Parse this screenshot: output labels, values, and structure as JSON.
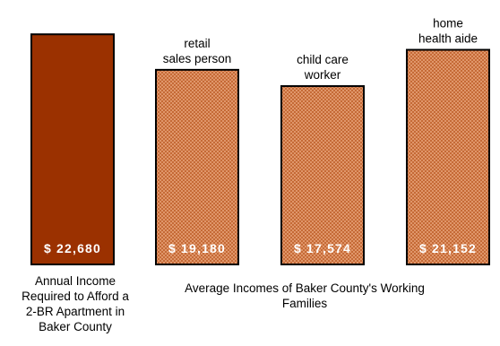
{
  "chart_data": {
    "type": "bar",
    "categories": [
      "Annual Income Required to Afford a 2-BR Apartment in Baker County",
      "retail sales person",
      "child care worker",
      "home health aide"
    ],
    "bar_labels": [
      "",
      "retail sales person",
      "child care worker",
      "home health aide"
    ],
    "values": [
      22680,
      19180,
      17574,
      21152
    ],
    "value_labels": [
      "$ 22,680",
      "$ 19,180",
      "$ 17,574",
      "$ 21,152"
    ],
    "title": "",
    "xlabel": "",
    "ylabel": "",
    "ylim": [
      0,
      25000
    ],
    "grid": false,
    "legend": "none",
    "colors": {
      "required": "#9B3100",
      "average": "#E0966A",
      "average_pattern": "#C56A36",
      "outline": "#000000",
      "value_text": "#FFFFFF"
    },
    "captions": {
      "required": "Annual Income Required to Afford a 2-BR Apartment in Baker County",
      "average": "Average Incomes of Baker County's Working Families"
    }
  }
}
